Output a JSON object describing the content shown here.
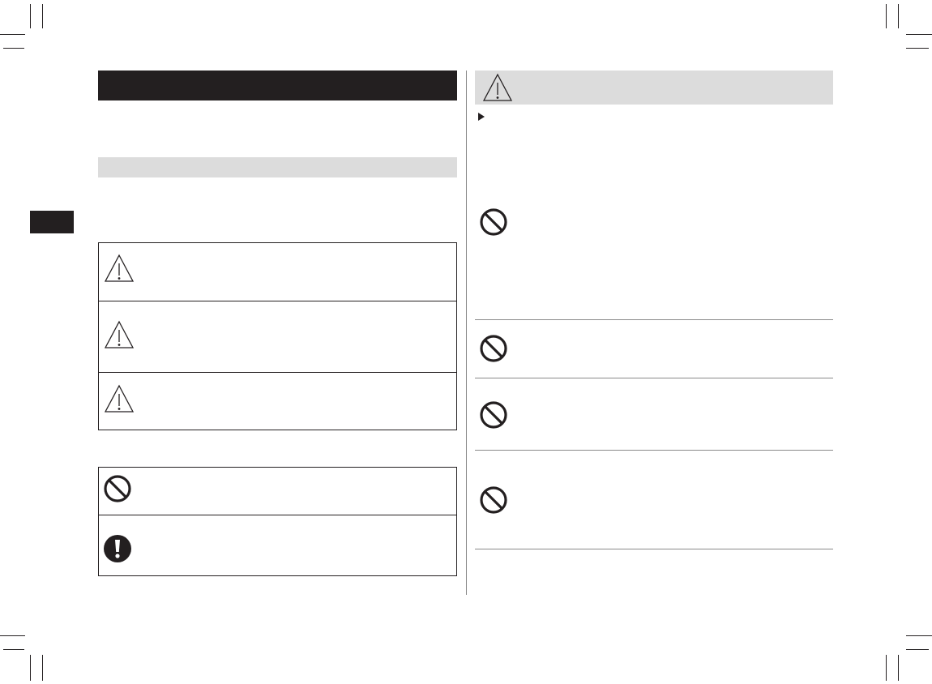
{
  "colors": {
    "ink": "#231f20",
    "header_gray": "#dcdcdc",
    "divider_gray": "#8a8a8a"
  },
  "icons": {
    "warning": "warning-triangle-icon",
    "prohibited": "prohibited-icon",
    "mandatory": "exclamation-icon",
    "bullet": "triangle-bullet-icon"
  }
}
